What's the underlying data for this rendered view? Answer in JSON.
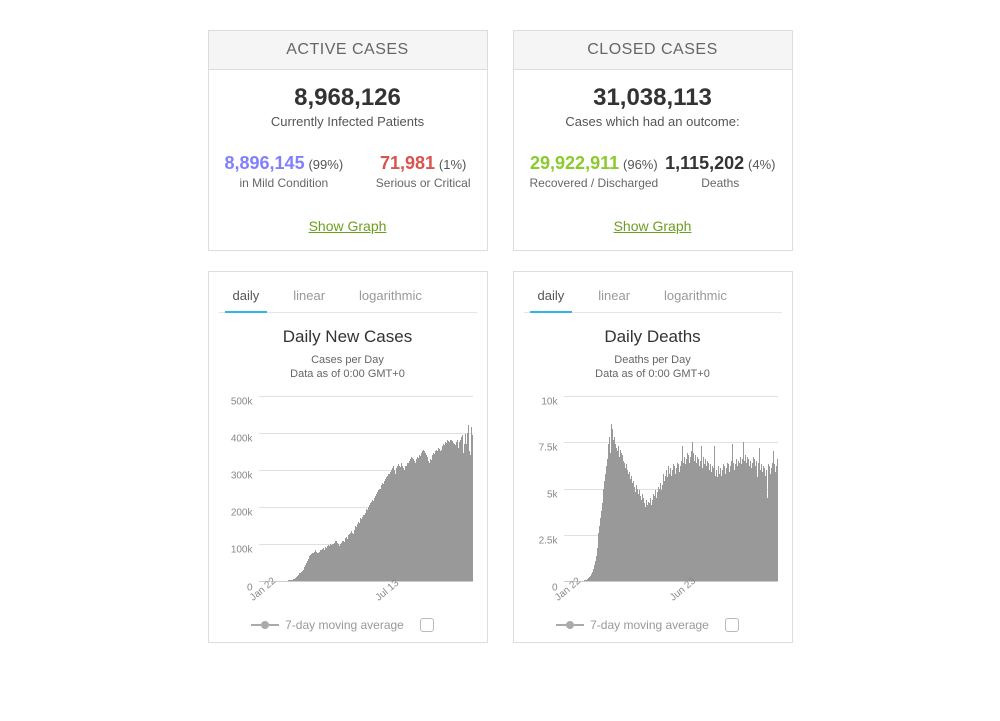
{
  "active": {
    "title": "ACTIVE CASES",
    "total": "8,968,126",
    "total_sub": "Currently Infected Patients",
    "left_num": "8,896,145",
    "left_pct": "(99%)",
    "left_sub": "in Mild Condition",
    "left_color": "#8080ff",
    "right_num": "71,981",
    "right_pct": "(1%)",
    "right_sub": "Serious or Critical",
    "right_color": "#d9534f",
    "link": "Show Graph"
  },
  "closed": {
    "title": "CLOSED CASES",
    "total": "31,038,113",
    "total_sub": "Cases which had an outcome:",
    "left_num": "29,922,911",
    "left_pct": "(96%)",
    "left_sub": "Recovered / Discharged",
    "left_color": "#8ACA2B",
    "right_num": "1,115,202",
    "right_pct": "(4%)",
    "right_sub": "Deaths",
    "right_color": "#333333",
    "link": "Show Graph"
  },
  "tabs": {
    "daily": "daily",
    "linear": "linear",
    "log": "logarithmic"
  },
  "chart_cases": {
    "title": "Daily New Cases",
    "sub1": "Cases per Day",
    "sub2": "Data as of 0:00 GMT+0",
    "ymax": 500,
    "yticks": [
      0,
      100,
      200,
      300,
      400,
      500
    ],
    "ytick_labels": [
      "0",
      "100k",
      "200k",
      "300k",
      "400k",
      "500k"
    ],
    "xtick_labels": [
      "Jan 22",
      "Jul 13"
    ],
    "xtick_pos": [
      0.02,
      0.6
    ],
    "bar_color": "#999999",
    "grid_color": "#e0e0e0",
    "bg_color": "#ffffff",
    "legend": "7-day moving average",
    "values": [
      0,
      0,
      0,
      0,
      0,
      0,
      0,
      0,
      0,
      0,
      0,
      0,
      0,
      0,
      0,
      0,
      0,
      0,
      0,
      0,
      0,
      0,
      0,
      0,
      1,
      1,
      1,
      1,
      1,
      1,
      1,
      1,
      2,
      2,
      2,
      3,
      3,
      3,
      4,
      4,
      5,
      6,
      7,
      8,
      10,
      12,
      15,
      18,
      20,
      22,
      24,
      26,
      28,
      30,
      35,
      40,
      45,
      50,
      55,
      60,
      65,
      70,
      72,
      74,
      76,
      78,
      80,
      82,
      84,
      80,
      78,
      76,
      80,
      82,
      84,
      86,
      88,
      90,
      85,
      92,
      94,
      90,
      95,
      98,
      96,
      92,
      100,
      98,
      102,
      100,
      105,
      96,
      110,
      108,
      104,
      100,
      95,
      98,
      102,
      105,
      108,
      110,
      106,
      112,
      118,
      120,
      115,
      125,
      128,
      122,
      130,
      135,
      132,
      128,
      140,
      145,
      150,
      148,
      155,
      160,
      158,
      165,
      170,
      168,
      175,
      180,
      178,
      185,
      190,
      195,
      192,
      200,
      205,
      210,
      208,
      215,
      220,
      218,
      225,
      230,
      235,
      232,
      240,
      245,
      250,
      248,
      255,
      260,
      265,
      262,
      270,
      275,
      280,
      278,
      285,
      290,
      288,
      295,
      300,
      298,
      305,
      310,
      300,
      290,
      295,
      305,
      310,
      315,
      312,
      308,
      320,
      316,
      310,
      305,
      300,
      310,
      308,
      312,
      320,
      318,
      325,
      330,
      328,
      335,
      332,
      330,
      325,
      320,
      330,
      328,
      335,
      332,
      340,
      338,
      345,
      350,
      348,
      355,
      352,
      346,
      340,
      335,
      330,
      325,
      320,
      330,
      328,
      340,
      335,
      345,
      342,
      350,
      355,
      348,
      352,
      360,
      356,
      350,
      355,
      360,
      365,
      370,
      368,
      375,
      372,
      378,
      380,
      378,
      376,
      382,
      380,
      378,
      374,
      372,
      370,
      368,
      375,
      380,
      365,
      360,
      374,
      382,
      388,
      395,
      380,
      345,
      370,
      398,
      370,
      360,
      400,
      420,
      350,
      340,
      415,
      395
    ]
  },
  "chart_deaths": {
    "title": "Daily Deaths",
    "sub1": "Deaths per Day",
    "sub2": "Data as of 0:00 GMT+0",
    "ymax": 10,
    "yticks": [
      0,
      2.5,
      5,
      7.5,
      10
    ],
    "ytick_labels": [
      "0",
      "2.5k",
      "5k",
      "7.5k",
      "10k"
    ],
    "xtick_labels": [
      "Jan 22",
      "Jun 23"
    ],
    "xtick_pos": [
      0.02,
      0.56
    ],
    "bar_color": "#999999",
    "grid_color": "#e0e0e0",
    "bg_color": "#ffffff",
    "legend": "7-day moving average",
    "values": [
      0,
      0,
      0,
      0,
      0,
      0,
      0,
      0,
      0,
      0,
      0,
      0,
      0,
      0,
      0,
      0,
      0,
      0,
      0,
      0,
      0.02,
      0.02,
      0.03,
      0.04,
      0.05,
      0.06,
      0.08,
      0.1,
      0.12,
      0.15,
      0.2,
      0.25,
      0.3,
      0.4,
      0.5,
      0.6,
      0.7,
      0.9,
      1.1,
      1.4,
      1.8,
      2.2,
      2.6,
      3.0,
      3.4,
      3.8,
      4.2,
      4.6,
      5.0,
      5.4,
      5.8,
      6.2,
      6.6,
      7.0,
      7.4,
      7.8,
      6.9,
      8.5,
      8.2,
      7.3,
      7.6,
      7.8,
      7.4,
      7.2,
      7.0,
      6.8,
      7.3,
      6.7,
      7.1,
      6.9,
      6.8,
      6.5,
      6.2,
      6.4,
      6.1,
      6.3,
      6.0,
      5.8,
      5.6,
      5.9,
      5.5,
      5.7,
      5.3,
      5.0,
      5.4,
      5.1,
      4.8,
      5.2,
      5.0,
      4.7,
      4.5,
      4.9,
      4.6,
      4.4,
      4.7,
      4.3,
      4.5,
      4.2,
      4.0,
      4.4,
      4.1,
      4.3,
      4.0,
      4.2,
      4.5,
      4.1,
      4.4,
      4.7,
      4.3,
      4.6,
      4.9,
      4.5,
      4.8,
      5.1,
      4.7,
      5.0,
      5.3,
      4.9,
      5.2,
      5.5,
      5.8,
      5.4,
      5.7,
      6.0,
      5.6,
      5.9,
      6.2,
      5.8,
      6.1,
      5.7,
      6.0,
      6.3,
      5.9,
      6.2,
      5.8,
      6.1,
      6.4,
      6.0,
      6.3,
      5.9,
      6.2,
      6.5,
      7.3,
      6.1,
      6.4,
      6.7,
      6.3,
      6.6,
      6.9,
      6.5,
      6.8,
      6.4,
      6.7,
      7.0,
      7.5,
      6.6,
      6.9,
      6.5,
      6.8,
      6.4,
      6.7,
      6.3,
      6.6,
      6.2,
      6.5,
      7.3,
      6.1,
      6.4,
      6.7,
      6.3,
      6.6,
      6.2,
      6.5,
      6.1,
      6.4,
      6.0,
      6.3,
      5.9,
      6.2,
      5.8,
      6.1,
      7.3,
      5.7,
      6.0,
      5.6,
      5.9,
      6.2,
      5.8,
      6.1,
      5.7,
      6.0,
      6.3,
      5.9,
      6.2,
      5.8,
      6.1,
      6.4,
      6.0,
      6.3,
      5.9,
      6.2,
      6.5,
      7.4,
      6.1,
      6.4,
      6.0,
      6.3,
      6.6,
      6.2,
      6.5,
      6.1,
      6.4,
      6.7,
      6.3,
      6.6,
      7.5,
      6.2,
      6.5,
      6.8,
      6.4,
      6.7,
      6.3,
      6.6,
      6.2,
      6.5,
      6.1,
      6.4,
      6.7,
      6.3,
      6.6,
      6.2,
      6.5,
      5.6,
      6.1,
      6.4,
      7.2,
      6.0,
      6.3,
      5.9,
      6.2,
      5.8,
      6.1,
      5.7,
      6.0,
      4.5,
      6.3,
      5.9,
      6.2,
      5.8,
      6.1,
      6.4,
      7.0,
      6.0,
      6.3,
      5.9,
      6.2,
      6.6
    ]
  }
}
